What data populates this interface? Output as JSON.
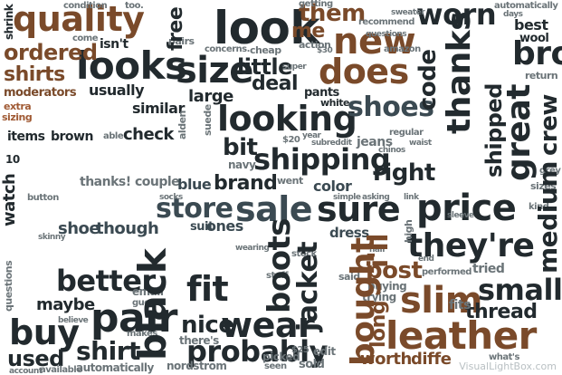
{
  "words": {
    "quality": "quality",
    "look": "look",
    "new": "new",
    "worn": "worn",
    "ordered": "ordered",
    "shirts": "shirts",
    "looks": "looks",
    "size": "size",
    "does": "does",
    "bro": "bro",
    "thanks": "thanks",
    "great": "great",
    "looking": "looking",
    "shoes": "shoes",
    "shipping": "shipping",
    "brand": "brand",
    "store": "store",
    "sale": "sale",
    "sure": "sure",
    "price": "price",
    "theyre": "they're",
    "boots": "boots",
    "jacket": "jacket",
    "black": "black",
    "fit": "fit",
    "better": "better",
    "pair": "pair",
    "buy": "buy",
    "wear": "wear",
    "nice": "nice",
    "shirt": "shirt",
    "probably": "probably",
    "bought": "bought",
    "slim": "slim",
    "leather": "leather",
    "small": "small",
    "thread": "thread",
    "medium": "medium",
    "crew": "crew",
    "post": "post",
    "ill": "i'll",
    "right": "right",
    "shipped": "shipped",
    "code": "code",
    "little": "little",
    "deal": "deal",
    "me": "me",
    "them": "them",
    "free": "free",
    "usually": "usually",
    "similar": "similar",
    "large": "large",
    "check": "check",
    "bit": "bit",
    "items": "items",
    "brown": "brown",
    "blue": "blue",
    "color": "color",
    "used": "used",
    "maybe": "maybe",
    "worth": "worth",
    "differ": "diffe",
    "long": "long",
    "though": "though",
    "shoe": "shoe",
    "watch": "watch",
    "thanks_couple": "thanks! couple",
    "moderators": "moderators",
    "extra": "extra",
    "sizing": "sizing",
    "ones": "ones",
    "suit": "suit",
    "dress": "dress",
    "best": "best",
    "wool": "wool",
    "isnt": "isn't",
    "pants": "pants",
    "white": "white",
    "jeans": "jeans",
    "navy": "navy",
    "condition": "condition",
    "cheap": "cheap",
    "getting": "getting",
    "amazon": "amazon",
    "automatically": "automatically",
    "account": "account",
    "available": "available",
    "nordstrom": "nordstrom",
    "sold": "sold",
    "edit": "edit",
    "theres": "there's",
    "seen": "seen",
    "whats": "what's",
    "tried": "tried",
    "fits": "fits",
    "buying": "buying",
    "trying": "trying",
    "said": "said",
    "went": "went",
    "stuff": "stuff",
    "stock": "stock",
    "picked": "picked",
    "return": "return",
    "sizes": "sizes",
    "kind": "kind",
    "grey": "grey",
    "alden": "alden",
    "suede": "suede",
    "wearing": "wearing",
    "skinny": "skinny",
    "button": "button",
    "able": "able",
    "ten": "10",
    "twenty": "$20",
    "twentyfive": "$25",
    "thirty": "$30",
    "too": "too.",
    "come": "come",
    "pairs": "pairs",
    "recommend": "recommend",
    "action": "action",
    "questions": "questions",
    "performed": "performed",
    "end": "end",
    "simple": "simple",
    "asking": "asking",
    "email": "email",
    "guess": "guess",
    "makes": "makes",
    "high": "high",
    "chinos": "chinos",
    "regular": "regular",
    "waist": "waist",
    "sleeve": "sleeve",
    "link": "link",
    "year": "year",
    "subreddit": "subreddit",
    "concerns": "concerns.",
    "believe": "believe",
    "super": "super",
    "sweater": "sweater",
    "days": "days",
    "half": "half",
    "shrink": "shrink",
    "socks": "socks"
  },
  "watermark": "VisualLightBox.com"
}
